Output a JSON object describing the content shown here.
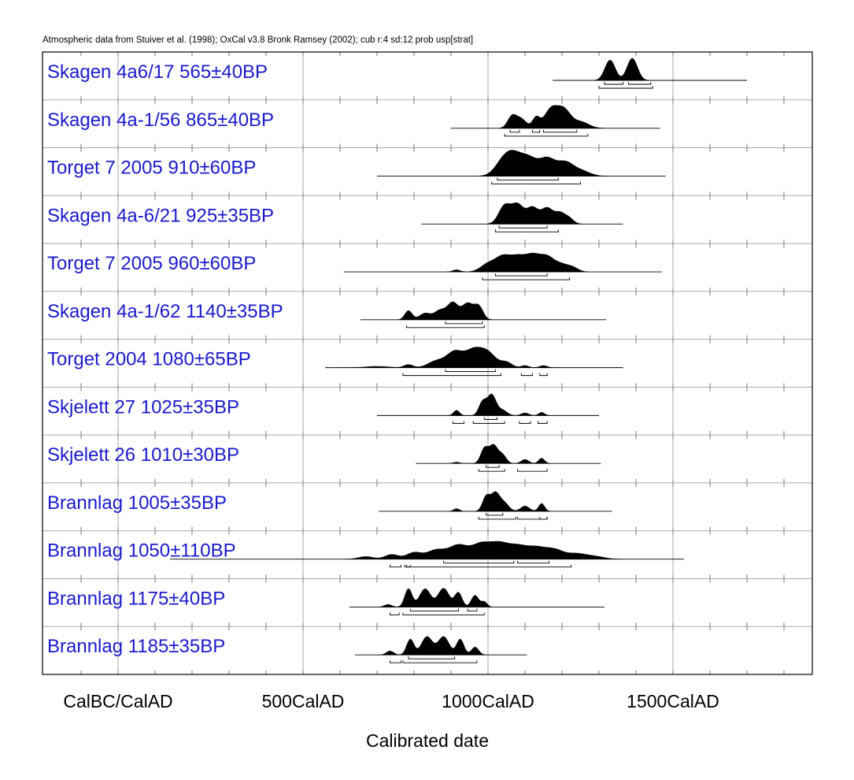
{
  "header": "Atmospheric data from Stuiver et al. (1998); OxCal v3.8 Bronk Ramsey (2002); cub r:4 sd:12 prob usp[strat]",
  "chart_data": {
    "type": "area",
    "title": "",
    "xlabel": "Calibrated date",
    "ylabel": "",
    "xlim": [
      -600,
      1800
    ],
    "x_ticks": [
      {
        "value": 0,
        "label": "CalBC/CalAD"
      },
      {
        "value": 500,
        "label": "500CalAD"
      },
      {
        "value": 1000,
        "label": "1000CalAD"
      },
      {
        "value": 1500,
        "label": "1500CalAD"
      }
    ],
    "grid": true,
    "legend": "none",
    "colors": {
      "label": "#1a1acd",
      "fill": "#000000",
      "grid": "#aaaaaa"
    },
    "series": [
      {
        "name": "Skagen 4a6/17  565±40BP",
        "line": [
          1175,
          1700
        ],
        "peaks": [
          [
            1330,
            0.78,
            14
          ],
          [
            1390,
            0.85,
            14
          ]
        ],
        "hpd1": [
          [
            1315,
            1365
          ],
          [
            1380,
            1440
          ]
        ],
        "hpd2": [
          [
            1300,
            1445
          ]
        ]
      },
      {
        "name": "Skagen 4a-1/56  865±40BP",
        "line": [
          900,
          1465
        ],
        "peaks": [
          [
            1065,
            0.45,
            12
          ],
          [
            1090,
            0.35,
            14
          ],
          [
            1130,
            0.4,
            10
          ],
          [
            1170,
            0.72,
            18
          ],
          [
            1205,
            0.68,
            18
          ],
          [
            1250,
            0.25,
            22
          ]
        ],
        "hpd1": [
          [
            1060,
            1085
          ],
          [
            1120,
            1140
          ],
          [
            1150,
            1240
          ]
        ],
        "hpd2": [
          [
            1045,
            1270
          ]
        ]
      },
      {
        "name": "Torget 7 2005  910±60BP",
        "line": [
          700,
          1480
        ],
        "peaks": [
          [
            1040,
            0.55,
            22
          ],
          [
            1070,
            0.72,
            22
          ],
          [
            1110,
            0.68,
            22
          ],
          [
            1160,
            0.7,
            22
          ],
          [
            1210,
            0.55,
            22
          ],
          [
            1255,
            0.2,
            22
          ]
        ],
        "hpd1": [
          [
            1025,
            1190
          ]
        ],
        "hpd2": [
          [
            1010,
            1250
          ]
        ]
      },
      {
        "name": "Skagen 4a-6/21  925±35BP",
        "line": [
          820,
          1365
        ],
        "peaks": [
          [
            1045,
            0.7,
            16
          ],
          [
            1080,
            0.72,
            16
          ],
          [
            1120,
            0.62,
            16
          ],
          [
            1160,
            0.6,
            16
          ],
          [
            1195,
            0.4,
            14
          ],
          [
            1220,
            0.2,
            12
          ]
        ],
        "hpd1": [
          [
            1030,
            1160
          ]
        ],
        "hpd2": [
          [
            1020,
            1190
          ]
        ]
      },
      {
        "name": "Torget 7 2005  960±60BP",
        "line": [
          610,
          1470
        ],
        "peaks": [
          [
            915,
            0.08,
            10
          ],
          [
            1000,
            0.3,
            20
          ],
          [
            1040,
            0.55,
            20
          ],
          [
            1080,
            0.52,
            20
          ],
          [
            1120,
            0.58,
            20
          ],
          [
            1160,
            0.55,
            20
          ],
          [
            1200,
            0.25,
            18
          ],
          [
            1230,
            0.15,
            15
          ]
        ],
        "hpd1": [
          [
            1020,
            1160
          ]
        ],
        "hpd2": [
          [
            985,
            1220
          ]
        ]
      },
      {
        "name": "Skagen 4a-1/62  1140±35BP",
        "line": [
          655,
          1320
        ],
        "peaks": [
          [
            785,
            0.35,
            10
          ],
          [
            830,
            0.25,
            15
          ],
          [
            870,
            0.35,
            15
          ],
          [
            905,
            0.65,
            15
          ],
          [
            945,
            0.62,
            15
          ],
          [
            975,
            0.5,
            12
          ]
        ],
        "hpd1": [
          [
            885,
            985
          ]
        ],
        "hpd2": [
          [
            780,
            990
          ]
        ]
      },
      {
        "name": "Torget 2004  1080±65BP",
        "line": [
          560,
          1365
        ],
        "peaks": [
          [
            700,
            0.05,
            30
          ],
          [
            785,
            0.12,
            12
          ],
          [
            860,
            0.25,
            22
          ],
          [
            910,
            0.6,
            22
          ],
          [
            960,
            0.62,
            22
          ],
          [
            1000,
            0.55,
            22
          ],
          [
            1050,
            0.2,
            15
          ],
          [
            1100,
            0.08,
            10
          ],
          [
            1150,
            0.08,
            10
          ]
        ],
        "hpd1": [
          [
            885,
            1020
          ]
        ],
        "hpd2": [
          [
            770,
            1035
          ],
          [
            1090,
            1120
          ],
          [
            1140,
            1160
          ]
        ]
      },
      {
        "name": "Skjelett 27  1025±35BP",
        "line": [
          700,
          1300
        ],
        "peaks": [
          [
            915,
            0.2,
            8
          ],
          [
            985,
            0.5,
            10
          ],
          [
            1010,
            0.8,
            12
          ],
          [
            1040,
            0.2,
            12
          ],
          [
            1100,
            0.1,
            10
          ],
          [
            1145,
            0.12,
            8
          ]
        ],
        "hpd1": [
          [
            990,
            1025
          ]
        ],
        "hpd2": [
          [
            905,
            935
          ],
          [
            960,
            1045
          ],
          [
            1085,
            1115
          ],
          [
            1135,
            1160
          ]
        ]
      },
      {
        "name": "Skjelett 26  1010±30BP",
        "line": [
          805,
          1305
        ],
        "peaks": [
          [
            915,
            0.05,
            8
          ],
          [
            990,
            0.55,
            10
          ],
          [
            1015,
            0.7,
            12
          ],
          [
            1040,
            0.3,
            10
          ],
          [
            1100,
            0.15,
            10
          ],
          [
            1145,
            0.2,
            8
          ]
        ],
        "hpd1": [
          [
            995,
            1030
          ]
        ],
        "hpd2": [
          [
            975,
            1045
          ],
          [
            1080,
            1160
          ]
        ]
      },
      {
        "name": "Brannlag   1005±35BP",
        "line": [
          705,
          1335
        ],
        "peaks": [
          [
            915,
            0.1,
            8
          ],
          [
            995,
            0.55,
            10
          ],
          [
            1020,
            0.7,
            12
          ],
          [
            1045,
            0.3,
            12
          ],
          [
            1100,
            0.2,
            12
          ],
          [
            1145,
            0.3,
            8
          ]
        ],
        "hpd1": [
          [
            995,
            1040
          ]
        ],
        "hpd2": [
          [
            975,
            1075
          ],
          [
            1080,
            1160
          ],
          [
            1140,
            1160
          ]
        ]
      },
      {
        "name": "Brannlag   1050±110BP",
        "line": [
          140,
          1530
        ],
        "peaks": [
          [
            670,
            0.1,
            20
          ],
          [
            740,
            0.18,
            18
          ],
          [
            800,
            0.25,
            20
          ],
          [
            860,
            0.35,
            25
          ],
          [
            920,
            0.52,
            25
          ],
          [
            980,
            0.55,
            25
          ],
          [
            1030,
            0.55,
            25
          ],
          [
            1080,
            0.45,
            25
          ],
          [
            1130,
            0.4,
            25
          ],
          [
            1180,
            0.35,
            25
          ],
          [
            1240,
            0.2,
            25
          ],
          [
            1290,
            0.1,
            25
          ]
        ],
        "hpd1": [
          [
            880,
            1070
          ],
          [
            1080,
            1165
          ]
        ],
        "hpd2": [
          [
            735,
            765
          ],
          [
            775,
            790
          ],
          [
            780,
            1225
          ]
        ]
      },
      {
        "name": "Brannlag   1175±40BP",
        "line": [
          625,
          1315
        ],
        "peaks": [
          [
            730,
            0.1,
            10
          ],
          [
            785,
            0.7,
            10
          ],
          [
            830,
            0.7,
            15
          ],
          [
            880,
            0.72,
            15
          ],
          [
            920,
            0.55,
            10
          ],
          [
            965,
            0.45,
            10
          ],
          [
            990,
            0.2,
            8
          ]
        ],
        "hpd1": [
          [
            790,
            920
          ],
          [
            945,
            970
          ]
        ],
        "hpd2": [
          [
            735,
            760
          ],
          [
            770,
            990
          ]
        ]
      },
      {
        "name": "Brannlag   1185±35BP",
        "line": [
          640,
          1105
        ],
        "peaks": [
          [
            735,
            0.15,
            10
          ],
          [
            790,
            0.6,
            10
          ],
          [
            835,
            0.7,
            15
          ],
          [
            880,
            0.7,
            15
          ],
          [
            925,
            0.6,
            10
          ],
          [
            965,
            0.3,
            10
          ]
        ],
        "hpd1": [
          [
            785,
            910
          ]
        ],
        "hpd2": [
          [
            735,
            765
          ],
          [
            770,
            970
          ]
        ]
      }
    ]
  }
}
